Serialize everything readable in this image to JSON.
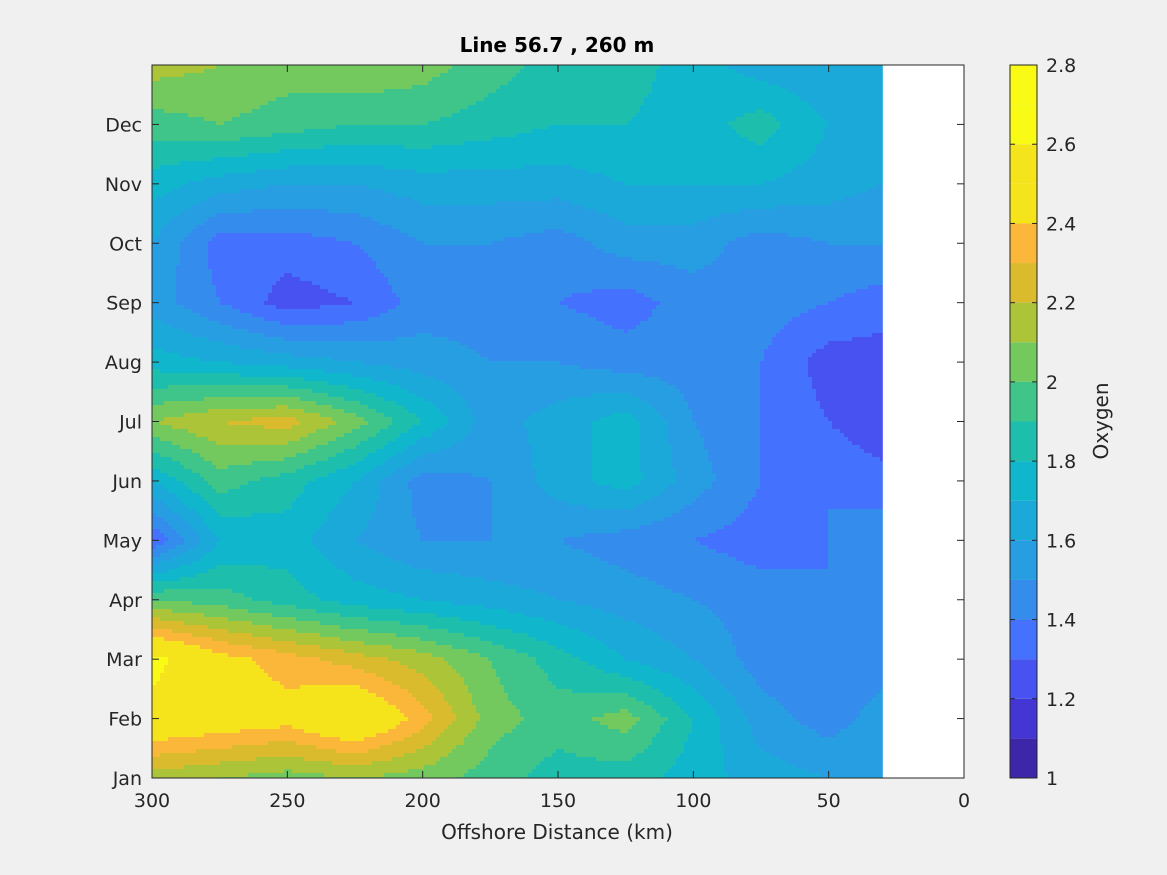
{
  "chart_data": {
    "type": "heatmap",
    "subtype": "filled-contour",
    "title": "Line 56.7 , 260 m",
    "xlabel": "Offshore Distance (km)",
    "ylabel": "",
    "xlim": [
      0,
      300
    ],
    "x_reversed": true,
    "x_ticks": [
      300,
      250,
      200,
      150,
      100,
      50,
      0
    ],
    "y_ticks": [
      "Jan",
      "Feb",
      "Mar",
      "Apr",
      "May",
      "Jun",
      "Jul",
      "Aug",
      "Sep",
      "Oct",
      "Nov",
      "Dec"
    ],
    "grid": false,
    "colorbar": {
      "label": "Oxygen",
      "range": [
        1,
        2.8
      ],
      "ticks": [
        1,
        1.2,
        1.4,
        1.6,
        1.8,
        2,
        2.2,
        2.4,
        2.6,
        2.8
      ],
      "levels": [
        1.0,
        1.1,
        1.2,
        1.3,
        1.4,
        1.5,
        1.6,
        1.7,
        1.8,
        1.9,
        2.0,
        2.1,
        2.2,
        2.3,
        2.4,
        2.5,
        2.6,
        2.7,
        2.8
      ],
      "colors": [
        "#3e26a8",
        "#4336d3",
        "#4752f0",
        "#4471fe",
        "#348ded",
        "#279ee1",
        "#1ba9da",
        "#0fb6cc",
        "#1ebeac",
        "#3fc48a",
        "#73c95e",
        "#acc538",
        "#dabb2d",
        "#fbb739",
        "#f5e41b",
        "#f5e41b",
        "#f9fb15",
        "#f9fb15"
      ]
    },
    "data_coverage_x": [
      30,
      300
    ],
    "x": [
      300,
      275,
      250,
      225,
      200,
      175,
      150,
      125,
      100,
      75,
      50,
      30
    ],
    "months": [
      "Jan",
      "Feb",
      "Mar",
      "Apr",
      "May",
      "Jun",
      "Jul",
      "Aug",
      "Sep",
      "Oct",
      "Nov",
      "Dec",
      "Jan"
    ],
    "z": [
      [
        2.15,
        2.1,
        2.05,
        2.1,
        2.05,
        1.95,
        1.85,
        1.85,
        1.75,
        1.65,
        1.6,
        1.6
      ],
      [
        2.55,
        2.5,
        2.45,
        2.6,
        2.35,
        2.05,
        1.95,
        2.05,
        1.8,
        1.55,
        1.45,
        1.55
      ],
      [
        2.65,
        2.45,
        2.35,
        2.25,
        2.15,
        2.0,
        1.85,
        1.7,
        1.6,
        1.45,
        1.4,
        1.45
      ],
      [
        2.0,
        1.95,
        1.85,
        1.75,
        1.7,
        1.65,
        1.6,
        1.55,
        1.5,
        1.45,
        1.4,
        1.45
      ],
      [
        1.3,
        1.7,
        1.75,
        1.6,
        1.5,
        1.5,
        1.5,
        1.45,
        1.4,
        1.35,
        1.4,
        1.45
      ],
      [
        1.7,
        1.95,
        1.85,
        1.7,
        1.45,
        1.5,
        1.65,
        1.75,
        1.55,
        1.4,
        1.4,
        1.35
      ],
      [
        2.1,
        2.2,
        2.25,
        2.05,
        1.8,
        1.55,
        1.65,
        1.75,
        1.5,
        1.4,
        1.3,
        1.2
      ],
      [
        1.75,
        1.7,
        1.65,
        1.6,
        1.55,
        1.5,
        1.5,
        1.45,
        1.45,
        1.4,
        1.25,
        1.25
      ],
      [
        1.55,
        1.4,
        1.25,
        1.3,
        1.45,
        1.45,
        1.4,
        1.35,
        1.45,
        1.45,
        1.4,
        1.35
      ],
      [
        1.6,
        1.35,
        1.35,
        1.4,
        1.5,
        1.5,
        1.45,
        1.55,
        1.55,
        1.45,
        1.5,
        1.5
      ],
      [
        1.75,
        1.65,
        1.6,
        1.6,
        1.65,
        1.65,
        1.65,
        1.7,
        1.7,
        1.7,
        1.65,
        1.6
      ],
      [
        1.95,
        2.0,
        1.95,
        1.9,
        1.9,
        1.85,
        1.8,
        1.8,
        1.75,
        1.85,
        1.7,
        1.65
      ],
      [
        2.15,
        2.1,
        2.05,
        2.1,
        2.05,
        1.95,
        1.85,
        1.85,
        1.75,
        1.65,
        1.6,
        1.6
      ]
    ]
  }
}
